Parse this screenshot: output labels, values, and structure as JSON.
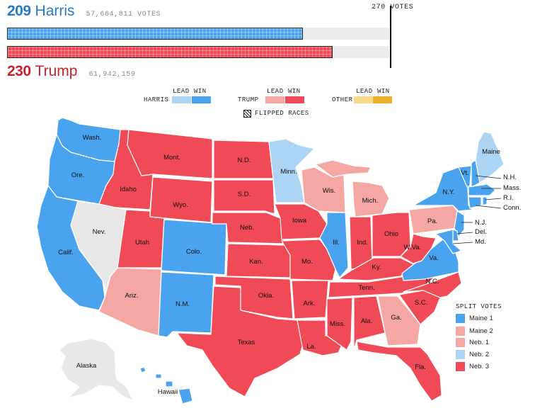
{
  "header": {
    "harris": {
      "ev": "209",
      "name": "Harris",
      "votes": "57,664,811 VOTES",
      "ev_fraction": 0.7741
    },
    "trump": {
      "ev": "230",
      "name": "Trump",
      "votes": "61,942,159",
      "ev_fraction": 0.8519
    },
    "threshold_label": "270 VOTES"
  },
  "legend": {
    "lead": "LEAD",
    "win": "WIN",
    "harris_label": "HARRIS",
    "trump_label": "TRUMP",
    "other_label": "OTHER",
    "flipped_label": "FLIPPED RACES"
  },
  "colors": {
    "dem_win": "#4aa3ee",
    "dem_lead": "#acd4f5",
    "rep_win": "#ef4a55",
    "rep_lead": "#f5a7a4",
    "other_lead": "#f7d98a",
    "other_win": "#eeb12f",
    "uncalled": "#e8e8e8",
    "track": "#ececec"
  },
  "states": {
    "wash": "Wash.",
    "ore": "Ore.",
    "calif": "Calif.",
    "idaho": "Idaho",
    "nev": "Nev.",
    "mont": "Mont.",
    "wyo": "Wyo.",
    "utah": "Utah",
    "ariz": "Ariz.",
    "colo": "Colo.",
    "nm": "N.M.",
    "nd": "N.D.",
    "sd": "S.D.",
    "neb": "Neb.",
    "kan": "Kan.",
    "okla": "Okla.",
    "texas": "Texas",
    "minn": "Minn.",
    "iowa": "Iowa",
    "mo": "Mo.",
    "ark": "Ark.",
    "la": "La.",
    "wis": "Wis.",
    "ill": "Ill.",
    "mich": "Mich.",
    "ind": "Ind.",
    "ohio": "Ohio",
    "ky": "Ky.",
    "tenn": "Tenn.",
    "miss": "Miss.",
    "ala": "Ala.",
    "ga": "Ga.",
    "fla": "Fla.",
    "sc": "S.C.",
    "nc": "N.C.",
    "va": "Va.",
    "wva": "W.Va.",
    "pa": "Pa.",
    "ny": "N.Y.",
    "vt": "Vt.",
    "maine": "Maine",
    "alaska": "Alaska",
    "hawaii": "Hawaii",
    "nh": "N.H.",
    "mass": "Mass.",
    "ri": "R.I.",
    "conn": "Conn.",
    "nj": "N.J.",
    "del": "Del.",
    "md": "Md."
  },
  "split_votes": {
    "title": "SPLIT VOTES",
    "items": [
      {
        "label": "Maine 1",
        "color": "#4aa3ee"
      },
      {
        "label": "Maine 2",
        "color": "#f5a7a4"
      },
      {
        "label": "Neb. 1",
        "color": "#f5a7a4"
      },
      {
        "label": "Neb. 2",
        "color": "#acd4f5"
      },
      {
        "label": "Neb. 3",
        "color": "#ef4a55"
      }
    ]
  }
}
